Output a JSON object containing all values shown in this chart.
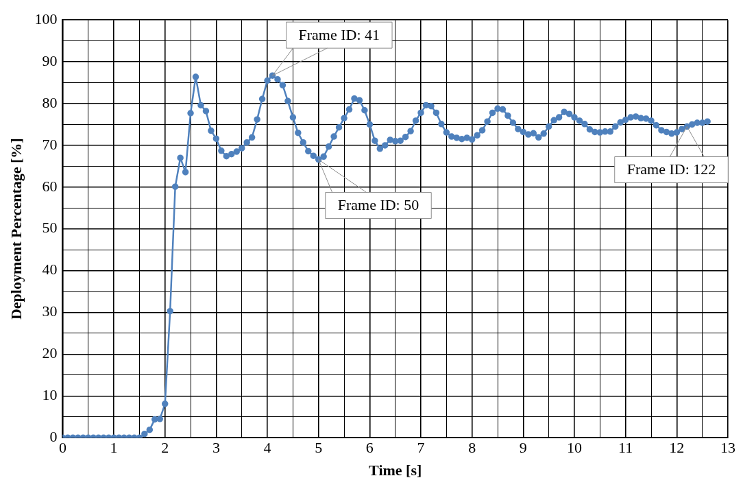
{
  "chart_data": {
    "type": "line",
    "xlabel": "Time [s]",
    "ylabel": "Deployment Percentage [%]",
    "x": [
      0,
      0.1,
      0.2,
      0.3,
      0.4,
      0.5,
      0.6,
      0.7,
      0.8,
      0.9,
      1.0,
      1.1,
      1.2,
      1.3,
      1.4,
      1.5,
      1.6,
      1.7,
      1.8,
      1.9,
      2.0,
      2.1,
      2.2,
      2.3,
      2.4,
      2.5,
      2.6,
      2.7,
      2.8,
      2.9,
      3.0,
      3.1,
      3.2,
      3.3,
      3.4,
      3.5,
      3.6,
      3.7,
      3.8,
      3.9,
      4.0,
      4.1,
      4.2,
      4.3,
      4.4,
      4.5,
      4.6,
      4.7,
      4.8,
      4.9,
      5.0,
      5.1,
      5.2,
      5.3,
      5.4,
      5.5,
      5.6,
      5.7,
      5.8,
      5.9,
      6.0,
      6.1,
      6.2,
      6.3,
      6.4,
      6.5,
      6.6,
      6.7,
      6.8,
      6.9,
      7.0,
      7.1,
      7.2,
      7.3,
      7.4,
      7.5,
      7.6,
      7.7,
      7.8,
      7.9,
      8.0,
      8.1,
      8.2,
      8.3,
      8.4,
      8.5,
      8.6,
      8.7,
      8.8,
      8.9,
      9.0,
      9.1,
      9.2,
      9.3,
      9.4,
      9.5,
      9.6,
      9.7,
      9.8,
      9.9,
      10.0,
      10.1,
      10.2,
      10.3,
      10.4,
      10.5,
      10.6,
      10.7,
      10.8,
      10.9,
      11.0,
      11.1,
      11.2,
      11.3,
      11.4,
      11.5,
      11.6,
      11.7,
      11.8,
      11.9,
      12.0,
      12.1,
      12.2,
      12.3,
      12.4,
      12.5,
      12.6
    ],
    "series": [
      {
        "color": "#4f81bd",
        "values": [
          0,
          0,
          0,
          0,
          0,
          0,
          0,
          0,
          0,
          0,
          0,
          0,
          0,
          0,
          0,
          0,
          0.9,
          1.9,
          4.4,
          4.5,
          8.1,
          30.3,
          60.1,
          67.0,
          63.6,
          77.7,
          86.4,
          79.6,
          78.2,
          73.5,
          71.6,
          68.7,
          67.4,
          67.9,
          68.5,
          69.3,
          70.7,
          71.9,
          76.2,
          81.1,
          85.5,
          86.7,
          85.8,
          84.4,
          80.6,
          76.7,
          73.0,
          70.7,
          68.6,
          67.5,
          66.6,
          67.3,
          69.7,
          72.1,
          74.3,
          76.5,
          78.6,
          81.2,
          80.8,
          78.4,
          75.0,
          71.1,
          69.2,
          70.0,
          71.3,
          71.0,
          71.1,
          72.0,
          73.4,
          75.9,
          77.8,
          79.6,
          79.4,
          77.8,
          75.1,
          73.1,
          72.1,
          71.8,
          71.5,
          71.8,
          71.4,
          72.4,
          73.6,
          75.7,
          77.8,
          78.8,
          78.6,
          77.1,
          75.4,
          73.9,
          73.2,
          72.6,
          72.9,
          71.9,
          72.8,
          74.5,
          76.0,
          76.7,
          78.0,
          77.5,
          76.7,
          75.9,
          75.1,
          73.8,
          73.2,
          73.1,
          73.3,
          73.3,
          74.5,
          75.5,
          76.1,
          76.7,
          76.9,
          76.5,
          76.4,
          75.9,
          74.8,
          73.6,
          73.2,
          72.8,
          73.1,
          73.9,
          74.5,
          75.0,
          75.4,
          75.4,
          75.7
        ]
      }
    ],
    "xlim": [
      0,
      13
    ],
    "xticks": [
      0,
      {
        "value": 0.5,
        "label": null
      },
      1,
      {
        "value": 1.5,
        "label": null
      },
      2,
      {
        "value": 2.5,
        "label": null
      },
      3,
      {
        "value": 3.5,
        "label": null
      },
      4,
      {
        "value": 4.5,
        "label": null
      },
      5,
      {
        "value": 5.5,
        "label": null
      },
      6,
      {
        "value": 6.5,
        "label": null
      },
      7,
      {
        "value": 7.5,
        "label": null
      },
      8,
      {
        "value": 8.5,
        "label": null
      },
      9,
      {
        "value": 9.5,
        "label": null
      },
      10,
      {
        "value": 10.5,
        "label": null
      },
      11,
      {
        "value": 11.5,
        "label": null
      },
      12,
      {
        "value": 12.5,
        "label": null
      },
      13
    ],
    "ylim": [
      0,
      100
    ],
    "yticks": [
      0,
      {
        "value": 5,
        "label": null
      },
      10,
      {
        "value": 15,
        "label": null
      },
      20,
      {
        "value": 25,
        "label": null
      },
      30,
      {
        "value": 35,
        "label": null
      },
      40,
      {
        "value": 45,
        "label": null
      },
      50,
      {
        "value": 55,
        "label": null
      },
      60,
      {
        "value": 65,
        "label": null
      },
      70,
      {
        "value": 75,
        "label": null
      },
      80,
      {
        "value": 85,
        "label": null
      },
      90,
      {
        "value": 95,
        "label": null
      },
      100
    ],
    "grid": true,
    "legend": false,
    "marker": "circle",
    "line_style": "solid",
    "annotations": [
      {
        "text": "Frame ID: 41",
        "x": 4.1,
        "y": 86.7
      },
      {
        "text": "Frame ID: 50",
        "x": 5.0,
        "y": 66.6
      },
      {
        "text": "Frame ID: 122",
        "x": 12.2,
        "y": 74.5
      }
    ]
  }
}
